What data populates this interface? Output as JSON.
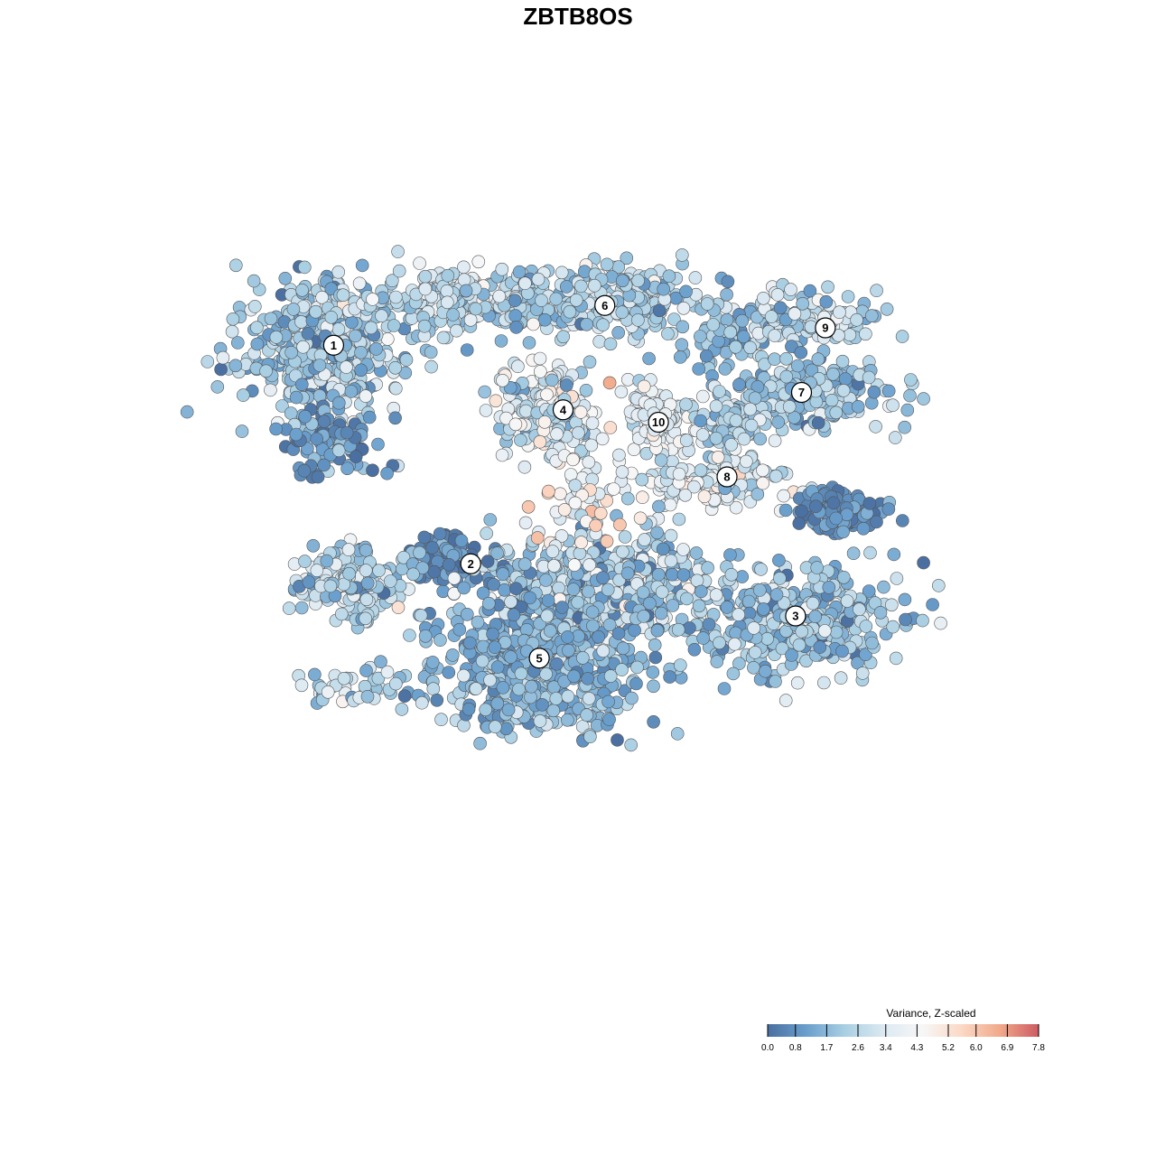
{
  "chart_data": {
    "type": "scatter",
    "title": "ZBTB8OS",
    "xlabel": "",
    "ylabel": "",
    "grid": false,
    "axes_visible": false,
    "color_scale": {
      "title": "Variance, Z-scaled",
      "min": 0.0,
      "max": 7.8,
      "ticks": [
        0.0,
        0.8,
        1.7,
        2.6,
        3.4,
        4.3,
        5.2,
        6.0,
        6.9,
        7.8
      ],
      "tick_labels": [
        "0.0",
        "0.8",
        "1.7",
        "2.6",
        "3.4",
        "4.3",
        "5.2",
        "6.0",
        "6.9",
        "7.8"
      ],
      "colors": [
        "#4a6fa0",
        "#6a9fcd",
        "#a9cfe3",
        "#dce9f2",
        "#f7f7f7",
        "#fbd9c6",
        "#f1a98a",
        "#cd5b62"
      ],
      "placement": "bottom-right"
    },
    "clusters": [
      {
        "label": "1",
        "x": -8.2,
        "y": 6.1,
        "mean_value": 2.2
      },
      {
        "label": "2",
        "x": -3.6,
        "y": -2.7,
        "mean_value": 1.0
      },
      {
        "label": "3",
        "x": 7.3,
        "y": -4.8,
        "mean_value": 2.0
      },
      {
        "label": "4",
        "x": -0.5,
        "y": 3.5,
        "mean_value": 3.6
      },
      {
        "label": "5",
        "x": -1.3,
        "y": -6.5,
        "mean_value": 1.8
      },
      {
        "label": "6",
        "x": 0.9,
        "y": 7.7,
        "mean_value": 2.4
      },
      {
        "label": "7",
        "x": 7.5,
        "y": 4.2,
        "mean_value": 1.9
      },
      {
        "label": "8",
        "x": 5.0,
        "y": 0.8,
        "mean_value": 3.3
      },
      {
        "label": "9",
        "x": 8.3,
        "y": 6.8,
        "mean_value": 2.4
      },
      {
        "label": "10",
        "x": 2.7,
        "y": 3.0,
        "mean_value": 3.7
      }
    ]
  }
}
